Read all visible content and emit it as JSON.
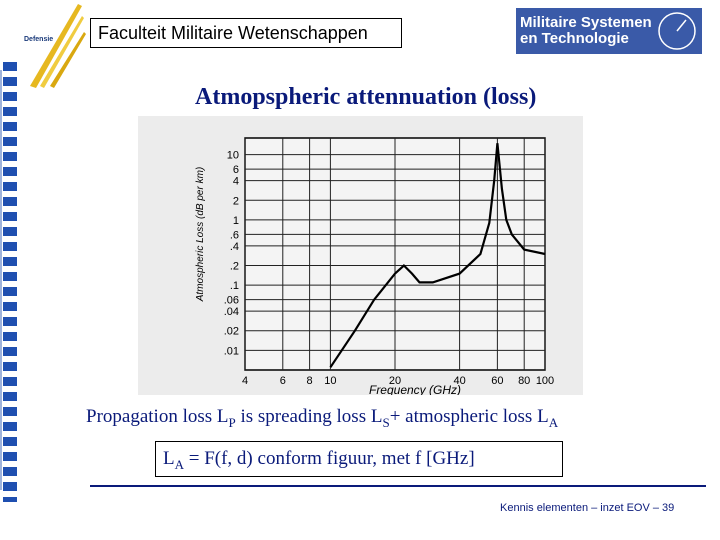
{
  "header": {
    "title": "Faculteit Militaire Wetenschappen",
    "logo_left": "Defensie",
    "logo_right": [
      "Militaire Systemen",
      "en Technologie"
    ]
  },
  "slide_title": "Atmopspheric attennuation (loss)",
  "chart_data": {
    "type": "line",
    "y_label": "Atmospheric Loss (dB per km)",
    "x_label": "Frequency (GHz)",
    "log_x": true,
    "log_y": true,
    "grid": true,
    "color": "#000000",
    "x": [
      10,
      13,
      16,
      20,
      22,
      24,
      26,
      30,
      40,
      50,
      55,
      58,
      60,
      63,
      66,
      70,
      80,
      100
    ],
    "values": [
      0.0055,
      0.02,
      0.06,
      0.15,
      0.2,
      0.15,
      0.11,
      0.11,
      0.15,
      0.3,
      0.9,
      4,
      15,
      3,
      1,
      0.6,
      0.35,
      0.3
    ],
    "xlim": [
      4,
      100
    ],
    "ylim": [
      0.005,
      18
    ],
    "xticks": [
      4,
      6,
      8,
      10,
      20,
      40,
      60,
      80,
      100
    ],
    "yticks": [
      10,
      6,
      4,
      2,
      1,
      {
        "value": 0.6,
        "label": ".6"
      },
      {
        "value": 0.4,
        "label": ".4"
      },
      {
        "value": 0.2,
        "label": ".2"
      },
      {
        "value": 0.1,
        "label": ".1"
      },
      {
        "value": 0.06,
        "label": ".06"
      },
      {
        "value": 0.04,
        "label": ".04"
      },
      {
        "value": 0.02,
        "label": ".02"
      },
      {
        "value": 0.01,
        "label": ".01"
      }
    ]
  },
  "body": [
    "Propagation loss L",
    "P",
    " is spreading loss L",
    "S",
    "+ atmospheric loss L",
    "A"
  ],
  "formula": [
    "L",
    "A",
    " = F(f, d) conform figuur, met f [GHz]"
  ],
  "footer": "Kennis elementen – inzet EOV – 39"
}
